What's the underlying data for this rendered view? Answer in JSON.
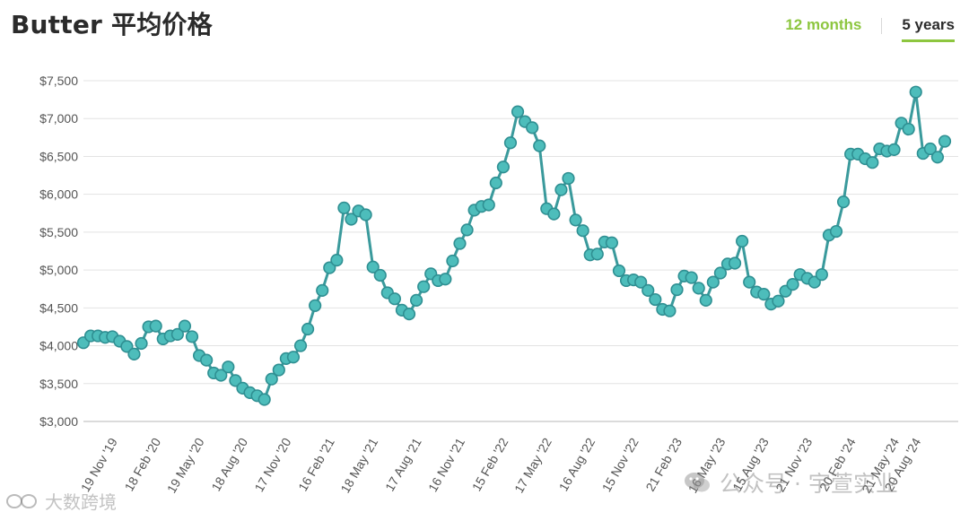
{
  "header": {
    "title": "Butter 平均价格",
    "tabs": [
      {
        "label": "12 months",
        "active": false
      },
      {
        "label": "5 years",
        "active": true
      }
    ]
  },
  "watermarks": {
    "left": "大数跨境",
    "center": "公众号 · 宇萱实业"
  },
  "colors": {
    "line": "#3a9a9c",
    "marker_fill": "#4dbdbb",
    "marker_stroke": "#2f8f92",
    "accent": "#8dc63f",
    "grid": "#e3e3e3"
  },
  "chart_data": {
    "type": "line",
    "title": "Butter 平均价格",
    "xlabel": "",
    "ylabel": "",
    "ylim": [
      3000,
      7500
    ],
    "yticks": [
      3000,
      3500,
      4000,
      4500,
      5000,
      5500,
      6000,
      6500,
      7000,
      7500
    ],
    "ytick_labels": [
      "$3,000",
      "$3,500",
      "$4,000",
      "$4,500",
      "$5,000",
      "$5,500",
      "$6,000",
      "$6,500",
      "$7,000",
      "$7,500"
    ],
    "grid": true,
    "legend": "none",
    "x_tick_labels": [
      {
        "index": 4,
        "label": "19 Nov '19"
      },
      {
        "index": 10,
        "label": "18 Feb '20"
      },
      {
        "index": 16,
        "label": "19 May '20"
      },
      {
        "index": 22,
        "label": "18 Aug '20"
      },
      {
        "index": 28,
        "label": "17 Nov '20"
      },
      {
        "index": 34,
        "label": "16 Feb '21"
      },
      {
        "index": 40,
        "label": "18 May '21"
      },
      {
        "index": 46,
        "label": "17 Aug '21"
      },
      {
        "index": 52,
        "label": "16 Nov '21"
      },
      {
        "index": 58,
        "label": "15 Feb '22"
      },
      {
        "index": 64,
        "label": "17 May '22"
      },
      {
        "index": 70,
        "label": "16 Aug '22"
      },
      {
        "index": 76,
        "label": "15 Nov '22"
      },
      {
        "index": 82,
        "label": "21 Feb '23"
      },
      {
        "index": 88,
        "label": "16 May '23"
      },
      {
        "index": 94,
        "label": "15 Aug '23"
      },
      {
        "index": 100,
        "label": "21 Nov '23"
      },
      {
        "index": 106,
        "label": "20 Feb '24"
      },
      {
        "index": 112,
        "label": "21 May '24"
      },
      {
        "index": 115,
        "label": "20 Aug '24"
      }
    ],
    "series": [
      {
        "values": [
          4040,
          4130,
          4130,
          4110,
          4120,
          4060,
          3990,
          3890,
          4030,
          4250,
          4260,
          4090,
          4130,
          4150,
          4260,
          4120,
          3870,
          3810,
          3640,
          3610,
          3720,
          3540,
          3440,
          3380,
          3340,
          3290,
          3560,
          3680,
          3830,
          3850,
          4000,
          4220,
          4530,
          4730,
          5030,
          5130,
          5820,
          5670,
          5780,
          5730,
          5040,
          4930,
          4700,
          4620,
          4470,
          4420,
          4600,
          4780,
          4950,
          4860,
          4880,
          5120,
          5350,
          5530,
          5790,
          5840,
          5860,
          6150,
          6360,
          6680,
          7090,
          6960,
          6880,
          6640,
          5810,
          5740,
          6060,
          6210,
          5660,
          5520,
          5200,
          5210,
          5370,
          5360,
          4990,
          4860,
          4870,
          4840,
          4730,
          4610,
          4480,
          4460,
          4740,
          4920,
          4900,
          4760,
          4600,
          4840,
          4960,
          5080,
          5090,
          5380,
          4840,
          4710,
          4680,
          4550,
          4590,
          4720,
          4810,
          4940,
          4890,
          4840,
          4940,
          5460,
          5510,
          5900,
          6530,
          6530,
          6470,
          6420,
          6600,
          6570,
          6590,
          6940,
          6860,
          7350,
          6540,
          6600,
          6490,
          6700
        ]
      }
    ]
  }
}
